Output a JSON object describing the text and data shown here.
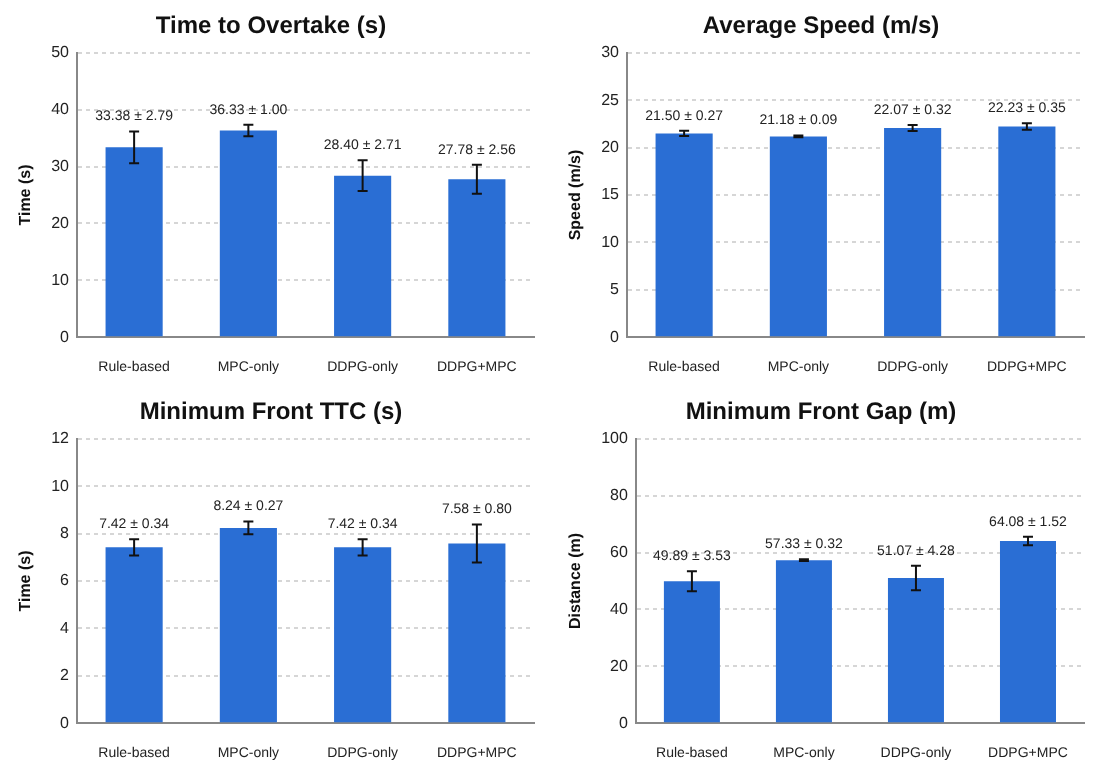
{
  "chart_data": [
    {
      "type": "bar",
      "title": "Time to Overtake (s)",
      "ylabel": "Time (s)",
      "categories": [
        "Rule-based",
        "MPC-only",
        "DDPG-only",
        "DDPG+MPC"
      ],
      "color": "#2a6ed4",
      "values": [
        33.38,
        36.33,
        28.4,
        27.78
      ],
      "errors": [
        2.79,
        1.0,
        2.71,
        2.56
      ],
      "value_labels": [
        "33.38 ± 2.79",
        "36.33 ± 1.00",
        "28.40 ± 2.71",
        "27.78 ± 2.56"
      ],
      "ylim": [
        0,
        50
      ],
      "yticks": [
        0,
        10,
        20,
        30,
        40,
        50
      ],
      "grid": "y"
    },
    {
      "type": "bar",
      "title": "Average Speed (m/s)",
      "ylabel": "Speed (m/s)",
      "categories": [
        "Rule-based",
        "MPC-only",
        "DDPG-only",
        "DDPG+MPC"
      ],
      "color": "#2a6ed4",
      "values": [
        21.5,
        21.18,
        22.07,
        22.23
      ],
      "errors": [
        0.27,
        0.09,
        0.32,
        0.35
      ],
      "value_labels": [
        "21.50 ± 0.27",
        "21.18 ± 0.09",
        "22.07 ± 0.32",
        "22.23 ± 0.35"
      ],
      "ylim": [
        0,
        30
      ],
      "yticks": [
        0,
        5,
        10,
        15,
        20,
        25,
        30
      ],
      "grid": "y"
    },
    {
      "type": "bar",
      "title": "Minimum Front TTC (s)",
      "ylabel": "Time (s)",
      "categories": [
        "Rule-based",
        "MPC-only",
        "DDPG-only",
        "DDPG+MPC"
      ],
      "color": "#2a6ed4",
      "values": [
        7.42,
        8.24,
        7.42,
        7.58
      ],
      "errors": [
        0.34,
        0.27,
        0.34,
        0.8
      ],
      "value_labels": [
        "7.42 ± 0.34",
        "8.24 ± 0.27",
        "7.42 ± 0.34",
        "7.58 ± 0.80"
      ],
      "ylim": [
        0,
        12
      ],
      "yticks": [
        0,
        2,
        4,
        6,
        8,
        10,
        12
      ],
      "grid": "y"
    },
    {
      "type": "bar",
      "title": "Minimum Front Gap (m)",
      "ylabel": "Distance (m)",
      "categories": [
        "Rule-based",
        "MPC-only",
        "DDPG-only",
        "DDPG+MPC"
      ],
      "color": "#2a6ed4",
      "values": [
        49.89,
        57.33,
        51.07,
        64.08
      ],
      "errors": [
        3.53,
        0.32,
        4.28,
        1.52
      ],
      "value_labels": [
        "49.89 ± 3.53",
        "57.33 ± 0.32",
        "51.07 ± 4.28",
        "64.08 ± 1.52"
      ],
      "ylim": [
        0,
        100
      ],
      "yticks": [
        0,
        20,
        40,
        60,
        80,
        100
      ],
      "grid": "y"
    }
  ]
}
